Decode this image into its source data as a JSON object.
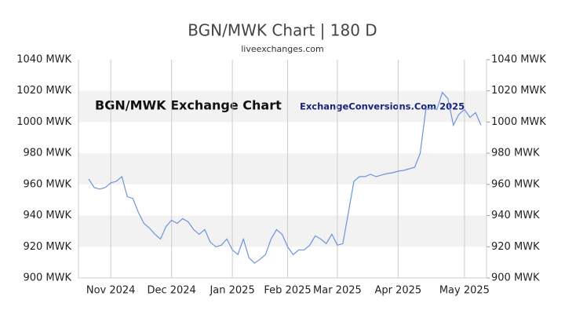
{
  "chart_data": {
    "type": "line",
    "title": "BGN/MWK Chart | 180 D",
    "subtitle": "liveexchanges.com",
    "annotations": [
      "BGN/MWK Exchange Chart",
      "ExchangeConversions.Com 2025"
    ],
    "categories": [
      null,
      null,
      null,
      null,
      "Nov 2024",
      null,
      null,
      null,
      null,
      null,
      null,
      null,
      null,
      null,
      null,
      "Dec 2024",
      null,
      null,
      null,
      null,
      null,
      null,
      null,
      null,
      null,
      null,
      "Jan 2025",
      null,
      null,
      null,
      null,
      null,
      null,
      null,
      null,
      null,
      "Feb 2025",
      null,
      null,
      null,
      null,
      null,
      null,
      null,
      null,
      "Mar 2025",
      null,
      null,
      null,
      null,
      null,
      null,
      null,
      null,
      null,
      null,
      "Apr 2025",
      null,
      null,
      null,
      null,
      null,
      null,
      null,
      null,
      null,
      null,
      null,
      "May 2025",
      null,
      null,
      null
    ],
    "values": [
      963.5,
      958,
      957,
      958,
      961,
      962,
      965,
      952,
      951,
      942,
      935,
      932,
      928,
      925,
      933,
      937,
      935,
      938,
      936,
      931,
      928,
      931,
      923,
      920,
      921,
      925,
      918,
      915,
      925,
      913,
      909.5,
      912,
      915,
      925,
      931,
      928,
      920,
      915,
      918,
      918,
      921,
      927,
      925,
      922,
      928,
      921,
      922,
      942,
      962,
      965,
      965,
      966.5,
      965,
      966,
      967,
      967.5,
      968.5,
      969,
      970,
      971,
      980,
      1008,
      1009,
      1008,
      1019,
      1015,
      998,
      1005,
      1008,
      1003,
      1006,
      998
    ],
    "color": "#6f93d8",
    "ylim": [
      900,
      1040
    ],
    "yticks": [
      {
        "value": 900,
        "label": "900 MWK"
      },
      {
        "value": 920,
        "label": "920 MWK"
      },
      {
        "value": 940,
        "label": "940 MWK"
      },
      {
        "value": 960,
        "label": "960 MWK"
      },
      {
        "value": 980,
        "label": "980 MWK"
      },
      {
        "value": 1000,
        "label": "1000 MWK"
      },
      {
        "value": 1020,
        "label": "1020 MWK"
      },
      {
        "value": 1040,
        "label": "1040 MWK"
      }
    ],
    "grid": true
  }
}
